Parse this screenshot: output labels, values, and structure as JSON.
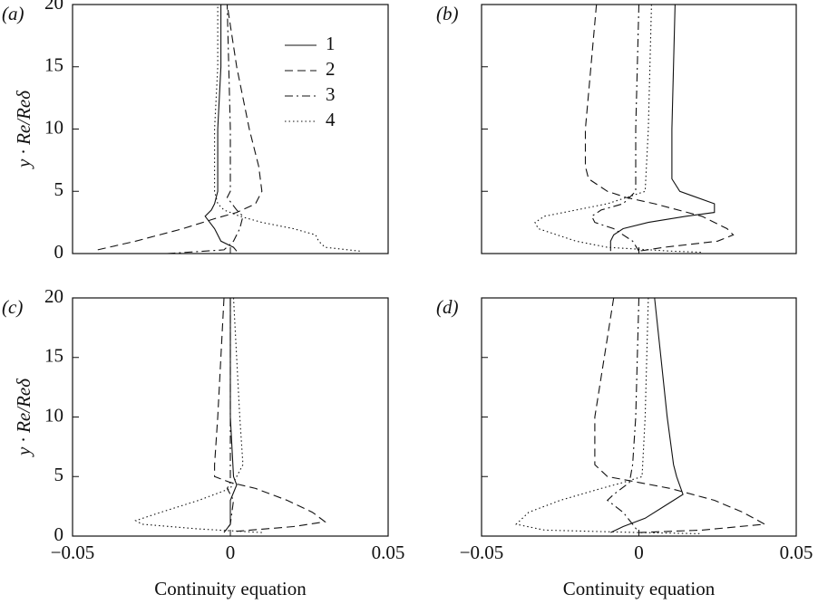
{
  "chart_data": [
    {
      "type": "line",
      "label": "(a)",
      "ylabel": "y · Re/Reδ",
      "xlim": [
        -0.05,
        0.05
      ],
      "ylim": [
        0,
        20
      ],
      "yticks": [
        0,
        5,
        10,
        15,
        20
      ],
      "legend": "upper center",
      "series": [
        {
          "name": "1",
          "style": "solid",
          "color": "#111111",
          "x": [
            0.002,
            0.001,
            -0.003,
            -0.005,
            -0.008,
            -0.006,
            -0.005,
            -0.004,
            -0.004,
            -0.003,
            -0.003
          ],
          "values": [
            0.2,
            0.5,
            1,
            2,
            3,
            3.5,
            4,
            5,
            10,
            15,
            20
          ]
        },
        {
          "name": "2",
          "style": "dashed",
          "color": "#111111",
          "x": [
            -0.042,
            -0.03,
            -0.015,
            -0.005,
            0.002,
            0.008,
            0.01,
            0.009,
            0.006,
            0.002,
            -0.001
          ],
          "values": [
            0.3,
            1,
            2,
            2.8,
            3.3,
            4,
            5,
            7,
            10,
            15,
            20
          ]
        },
        {
          "name": "3",
          "style": "dashdot",
          "color": "#111111",
          "x": [
            -0.02,
            -0.002,
            0.001,
            0.003,
            0.004,
            0.002,
            -0.001,
            0,
            0,
            -0.001
          ],
          "values": [
            0,
            0.3,
            1,
            2,
            3,
            3.5,
            4.5,
            5,
            10,
            20
          ]
        },
        {
          "name": "4",
          "style": "dotted",
          "color": "#111111",
          "x": [
            0.041,
            0.03,
            0.028,
            0.027,
            0.02,
            0.01,
            0.003,
            -0.002,
            -0.004,
            -0.005,
            -0.005,
            -0.004,
            -0.004
          ],
          "values": [
            0.2,
            0.5,
            1,
            1.5,
            2,
            2.5,
            3,
            3.5,
            4,
            5,
            10,
            15,
            20
          ]
        }
      ]
    },
    {
      "type": "line",
      "label": "(b)",
      "xlim": [
        -0.05,
        0.05
      ],
      "ylim": [
        0,
        20
      ],
      "series": [
        {
          "style": "solid",
          "color": "#111111",
          "x": [
            0.0115,
            0.0105,
            0.0105,
            0.013,
            0.024,
            0.024,
            0.015,
            0.003,
            -0.005,
            -0.008,
            -0.009,
            -0.009
          ],
          "values": [
            20,
            10,
            6,
            5,
            4,
            3.3,
            3,
            2.5,
            2,
            1.5,
            1,
            0.2
          ]
        },
        {
          "style": "dashed",
          "color": "#111111",
          "x": [
            -0.0135,
            -0.017,
            -0.017,
            -0.016,
            -0.01,
            -0.004,
            0.005,
            0.02,
            0.028,
            0.03,
            0.025,
            0.008,
            0
          ],
          "values": [
            20,
            10,
            7,
            6,
            5,
            4.5,
            4,
            3,
            2,
            1.5,
            1,
            0.5,
            0.2
          ]
        },
        {
          "style": "dashdot",
          "color": "#111111",
          "x": [
            0,
            -0.001,
            -0.001,
            -0.005,
            -0.012,
            -0.015,
            -0.014,
            -0.008,
            -0.002,
            0
          ],
          "values": [
            20,
            10,
            5,
            4,
            3.5,
            3,
            2.5,
            2,
            1,
            0.2
          ]
        },
        {
          "style": "dotted",
          "color": "#111111",
          "x": [
            0.004,
            0.003,
            0.002,
            -0.01,
            -0.02,
            -0.03,
            -0.033,
            -0.032,
            -0.02,
            -0.01,
            0.01,
            0.02
          ],
          "values": [
            20,
            10,
            5,
            4,
            3.5,
            3,
            2.5,
            2,
            1,
            0.5,
            0.2,
            0.1
          ]
        }
      ]
    },
    {
      "type": "line",
      "label": "(c)",
      "ylabel": "y · Re/Reδ",
      "xlabel": "Continuity equation",
      "xlim": [
        -0.05,
        0.05
      ],
      "ylim": [
        0,
        20
      ],
      "xticks": [
        {
          "value": -0.05,
          "label": "−0.05"
        },
        0,
        0.05
      ],
      "yticks": [
        0,
        5,
        10,
        15,
        20
      ],
      "series": [
        {
          "style": "solid",
          "color": "#111111",
          "x": [
            0,
            0,
            0.001,
            0.002,
            0,
            0,
            -0.002
          ],
          "values": [
            20,
            10,
            5,
            4.3,
            3,
            1,
            0.3
          ]
        },
        {
          "style": "dashed",
          "color": "#111111",
          "x": [
            -0.002,
            -0.004,
            -0.005,
            -0.005,
            0,
            0.008,
            0.018,
            0.026,
            0.03,
            0.02,
            0.002
          ],
          "values": [
            20,
            10,
            6,
            5,
            4.5,
            4,
            3,
            2,
            1.2,
            0.8,
            0.4
          ]
        },
        {
          "style": "dashdot",
          "color": "#111111",
          "x": [
            0,
            0,
            0,
            -0.001,
            0.001,
            0,
            -0.002
          ],
          "values": [
            20,
            10,
            4.5,
            4,
            3,
            1,
            0.3
          ]
        },
        {
          "style": "dotted",
          "color": "#111111",
          "x": [
            0.001,
            0.003,
            0.004,
            0,
            -0.01,
            -0.022,
            -0.03,
            -0.028,
            -0.01,
            0.01
          ],
          "values": [
            20,
            10,
            6,
            4,
            3,
            2,
            1.3,
            1,
            0.6,
            0.3
          ]
        }
      ]
    },
    {
      "type": "line",
      "label": "(d)",
      "xlabel": "Continuity equation",
      "xlim": [
        -0.05,
        0.05
      ],
      "ylim": [
        0,
        20
      ],
      "xticks": [
        {
          "value": -0.05,
          "label": "−0.05"
        },
        0,
        0.05
      ],
      "series": [
        {
          "style": "solid",
          "color": "#111111",
          "x": [
            0.005,
            0.007,
            0.009,
            0.011,
            0.012,
            0.014,
            0.008,
            0.002,
            -0.005,
            -0.009
          ],
          "values": [
            20,
            15,
            10,
            6,
            5,
            3.5,
            2.5,
            1.5,
            0.8,
            0.3
          ]
        },
        {
          "style": "dashed",
          "color": "#111111",
          "x": [
            -0.008,
            -0.011,
            -0.014,
            -0.014,
            -0.01,
            0,
            0.01,
            0.024,
            0.033,
            0.04,
            0.02,
            0
          ],
          "values": [
            20,
            15,
            10,
            6,
            5,
            4.5,
            4,
            3,
            2,
            1,
            0.5,
            0.3
          ]
        },
        {
          "style": "dashdot",
          "color": "#111111",
          "x": [
            0,
            -0.001,
            -0.002,
            -0.003,
            -0.008,
            -0.01,
            -0.005,
            -0.002,
            0
          ],
          "values": [
            20,
            10,
            6,
            4.5,
            3.5,
            3,
            2,
            1,
            0.3
          ]
        },
        {
          "style": "dotted",
          "color": "#111111",
          "x": [
            0.003,
            0.002,
            0.001,
            -0.005,
            -0.012,
            -0.025,
            -0.035,
            -0.037,
            -0.039,
            -0.03,
            0,
            0.02
          ],
          "values": [
            20,
            10,
            5,
            4.5,
            4,
            3,
            2,
            1.5,
            1,
            0.5,
            0.3,
            0.2
          ]
        }
      ]
    }
  ]
}
